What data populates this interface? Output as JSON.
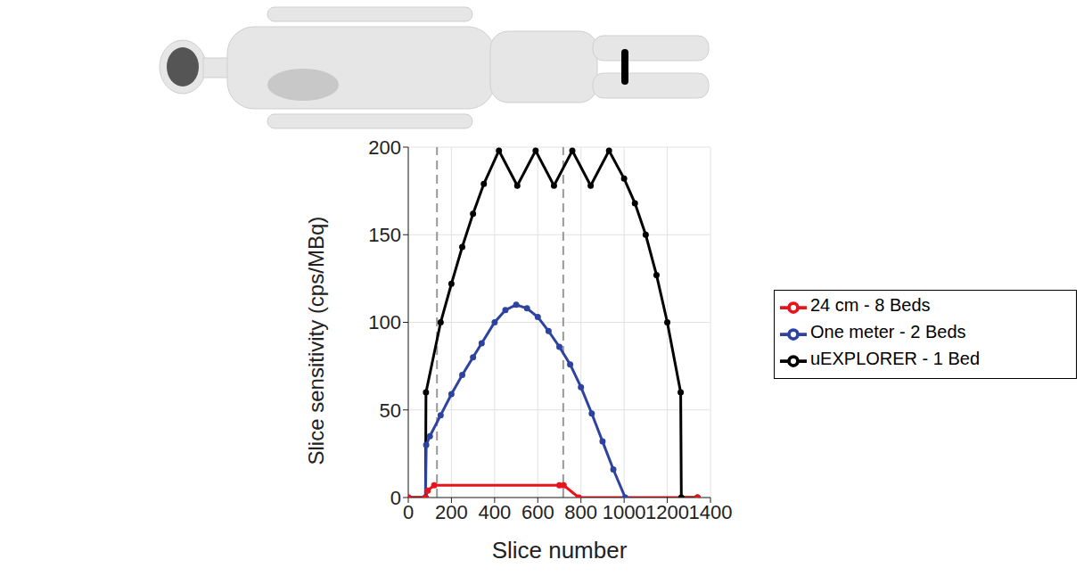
{
  "chart_data": {
    "type": "line",
    "x_label": "Slice number",
    "y_label": "Slice sensitivity (cps/MBq)",
    "xlim": [
      0,
      1400
    ],
    "xticks": [
      0,
      200,
      400,
      600,
      800,
      1000,
      1200,
      1400
    ],
    "ylim": [
      0,
      200
    ],
    "yticks": [
      0,
      50,
      100,
      150,
      200
    ],
    "grid": true,
    "legend": "right",
    "vlines": [
      133,
      718
    ],
    "series": [
      {
        "name": "uEXPLORER -  1 Bed",
        "color": "#000000",
        "marker": "circle",
        "x": [
          0,
          80,
          82,
          150,
          200,
          250,
          300,
          350,
          420,
          505,
          590,
          675,
          760,
          845,
          930,
          1000,
          1050,
          1100,
          1150,
          1200,
          1262,
          1265,
          1340
        ],
        "values": [
          0,
          0,
          60,
          100,
          122,
          143,
          162,
          179,
          198,
          178,
          198,
          178,
          198,
          178,
          198,
          182,
          168,
          150,
          127,
          100,
          60,
          0,
          0
        ]
      },
      {
        "name": "One meter -  2 Beds",
        "color": "#2e43a0",
        "marker": "circle",
        "x": [
          80,
          83,
          100,
          150,
          200,
          250,
          300,
          340,
          400,
          450,
          500,
          550,
          600,
          650,
          700,
          750,
          800,
          850,
          900,
          950,
          1005
        ],
        "values": [
          0,
          30,
          35,
          47,
          59,
          70,
          80,
          88,
          100,
          107,
          110,
          108,
          103,
          95,
          86,
          76,
          63,
          48,
          32,
          16,
          0
        ]
      },
      {
        "name": "24 cm -  8 Beds",
        "color": "#e8141b",
        "marker": "circle",
        "x": [
          0,
          80,
          90,
          120,
          700,
          720,
          790,
          1340
        ],
        "values": [
          0,
          0,
          4,
          7,
          7,
          7,
          0,
          0
        ]
      }
    ]
  }
}
